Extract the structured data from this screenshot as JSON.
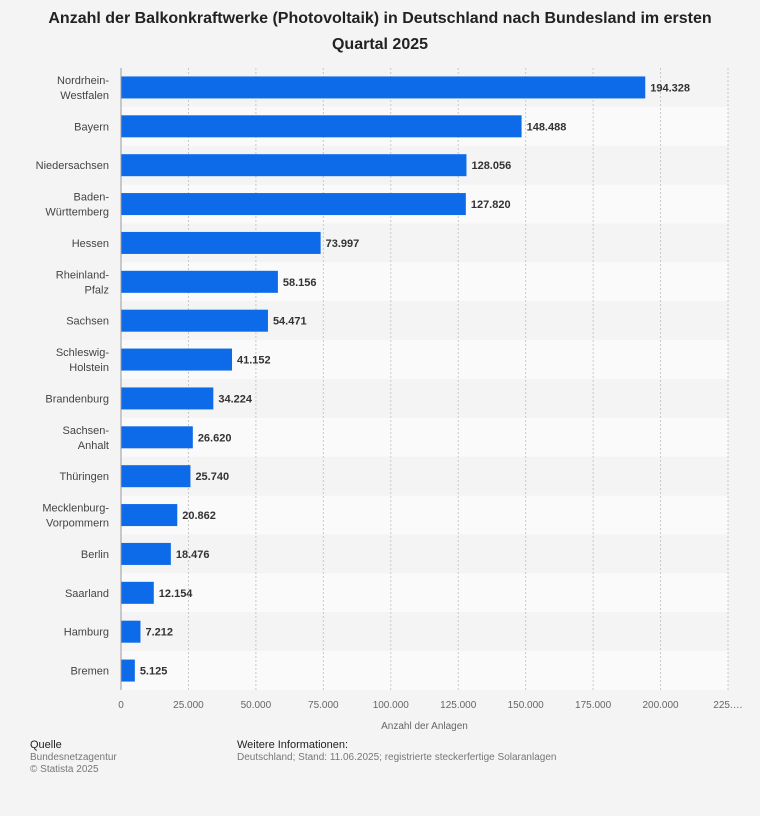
{
  "chart_data": {
    "type": "bar",
    "orientation": "horizontal",
    "title": "Anzahl der Balkonkraftwerke (Photovoltaik) in Deutschland nach Bundesland im ersten Quartal 2025",
    "categories": [
      "Nordrhein-Westfalen",
      "Bayern",
      "Niedersachsen",
      "Baden-Württemberg",
      "Hessen",
      "Rheinland-Pfalz",
      "Sachsen",
      "Schleswig-Holstein",
      "Brandenburg",
      "Sachsen-Anhalt",
      "Thüringen",
      "Mecklenburg-Vorpommern",
      "Berlin",
      "Saarland",
      "Hamburg",
      "Bremen"
    ],
    "category_label_lines": [
      [
        "Nordrhein-",
        "Westfalen"
      ],
      [
        "Bayern"
      ],
      [
        "Niedersachsen"
      ],
      [
        "Baden-",
        "Württemberg"
      ],
      [
        "Hessen"
      ],
      [
        "Rheinland-",
        "Pfalz"
      ],
      [
        "Sachsen"
      ],
      [
        "Schleswig-",
        "Holstein"
      ],
      [
        "Brandenburg"
      ],
      [
        "Sachsen-",
        "Anhalt"
      ],
      [
        "Thüringen"
      ],
      [
        "Mecklenburg-",
        "Vorpommern"
      ],
      [
        "Berlin"
      ],
      [
        "Saarland"
      ],
      [
        "Hamburg"
      ],
      [
        "Bremen"
      ]
    ],
    "values": [
      194328,
      148488,
      128056,
      127820,
      73997,
      58156,
      54471,
      41152,
      34224,
      26620,
      25740,
      20862,
      18476,
      12154,
      7212,
      5125
    ],
    "value_labels": [
      "194.328",
      "148.488",
      "128.056",
      "127.820",
      "73.997",
      "58.156",
      "54.471",
      "41.152",
      "34.224",
      "26.620",
      "25.740",
      "20.862",
      "18.476",
      "12.154",
      "7.212",
      "5.125"
    ],
    "xlabel": "Anzahl der Anlagen",
    "ylabel": "",
    "xlim": [
      0,
      225000
    ],
    "x_ticks": [
      0,
      25000,
      50000,
      75000,
      100000,
      125000,
      150000,
      175000,
      200000,
      225000
    ],
    "x_tick_labels": [
      "0",
      "25.000",
      "50.000",
      "75.000",
      "100.000",
      "125.000",
      "150.000",
      "175.000",
      "200.000",
      "225.…"
    ],
    "grid": "vertical dashed",
    "bar_color": "#0d6ae8"
  },
  "footer": {
    "source_heading": "Quelle",
    "source_lines": [
      "Bundesnetzagentur",
      "© Statista 2025"
    ],
    "info_heading": "Weitere Informationen:",
    "info_text": "Deutschland; Stand: 11.06.2025; registrierte steckerfertige Solaranlagen"
  }
}
